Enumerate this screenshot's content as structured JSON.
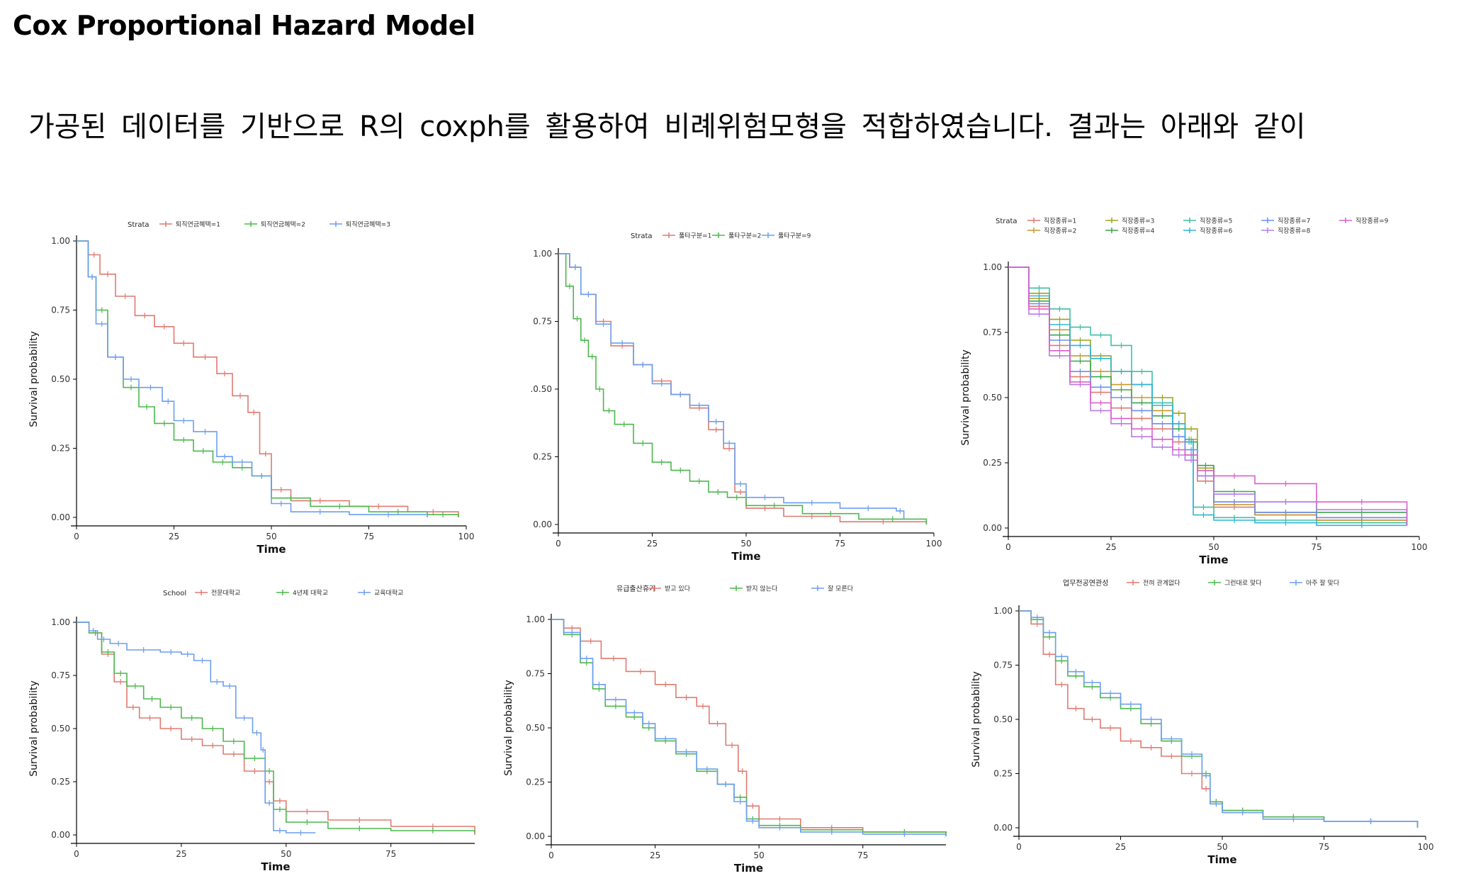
{
  "page": {
    "title": "Cox Proportional Hazard Model",
    "subtitle": "가공된 데이터를 기반으로 R의 coxph를 활용하여 비례위험모형을 적합하였습니다. 결과는 아래와 같이"
  },
  "chart_data": [
    {
      "type": "line",
      "legend_title": "Strata",
      "xlabel": "Time",
      "ylabel": "Survival probability",
      "xlim": [
        0,
        100
      ],
      "ylim": [
        0,
        1
      ],
      "xticks": [
        "0",
        "25",
        "50",
        "75",
        "100"
      ],
      "yticks": [
        "0.00",
        "0.25",
        "0.50",
        "0.75",
        "1.00"
      ],
      "legend_position": "top",
      "series": [
        {
          "name": "퇴직연금혜택=1",
          "color": "#e07a70",
          "x": [
            0,
            3,
            6,
            10,
            15,
            20,
            25,
            30,
            36,
            40,
            44,
            47,
            50,
            55,
            70,
            85,
            98
          ],
          "y": [
            1,
            0.95,
            0.88,
            0.8,
            0.73,
            0.69,
            0.63,
            0.58,
            0.52,
            0.44,
            0.38,
            0.23,
            0.1,
            0.06,
            0.04,
            0.02,
            0
          ]
        },
        {
          "name": "퇴직연금혜택=2",
          "color": "#4cb84c",
          "x": [
            0,
            3,
            5,
            8,
            12,
            16,
            20,
            25,
            30,
            35,
            40,
            45,
            50,
            60,
            75,
            90,
            98
          ],
          "y": [
            1,
            0.87,
            0.75,
            0.58,
            0.47,
            0.4,
            0.34,
            0.28,
            0.24,
            0.2,
            0.18,
            0.15,
            0.07,
            0.04,
            0.02,
            0.01,
            0
          ]
        },
        {
          "name": "퇴직연금혜택=3",
          "color": "#6c9ef0",
          "x": [
            0,
            3,
            5,
            8,
            12,
            16,
            22,
            25,
            30,
            36,
            40,
            45,
            50,
            55,
            70,
            90
          ],
          "y": [
            1,
            0.87,
            0.7,
            0.58,
            0.5,
            0.47,
            0.42,
            0.35,
            0.31,
            0.22,
            0.2,
            0.15,
            0.05,
            0.02,
            0.01,
            0
          ]
        }
      ]
    },
    {
      "type": "line",
      "legend_title": "Strata",
      "xlabel": "Time",
      "ylabel": "",
      "xlim": [
        0,
        100
      ],
      "ylim": [
        0,
        1
      ],
      "xticks": [
        "0",
        "25",
        "50",
        "75",
        "100"
      ],
      "yticks": [
        "0.00",
        "0.25",
        ".0.50",
        "0.75",
        "1.00"
      ],
      "legend_position": "top",
      "series": [
        {
          "name": "풀타구분=1",
          "color": "#e07a70",
          "x": [
            0,
            3,
            6,
            10,
            14,
            20,
            25,
            30,
            35,
            40,
            44,
            47,
            50,
            60,
            75,
            98
          ],
          "y": [
            1,
            0.95,
            0.85,
            0.75,
            0.66,
            0.59,
            0.53,
            0.48,
            0.43,
            0.35,
            0.28,
            0.12,
            0.06,
            0.03,
            0.01,
            0
          ]
        },
        {
          "name": "풀타구분=2",
          "color": "#4cb84c",
          "x": [
            0,
            2,
            4,
            6,
            8,
            10,
            12,
            15,
            20,
            25,
            30,
            35,
            40,
            45,
            50,
            65,
            80,
            98
          ],
          "y": [
            1,
            0.88,
            0.76,
            0.68,
            0.62,
            0.5,
            0.42,
            0.37,
            0.3,
            0.23,
            0.2,
            0.16,
            0.12,
            0.1,
            0.07,
            0.04,
            0.02,
            0
          ]
        },
        {
          "name": "풀타구분=9",
          "color": "#6c9ef0",
          "x": [
            0,
            3,
            6,
            10,
            14,
            20,
            25,
            30,
            35,
            40,
            44,
            47,
            50,
            60,
            75,
            90,
            92
          ],
          "y": [
            1,
            0.95,
            0.85,
            0.74,
            0.67,
            0.59,
            0.52,
            0.48,
            0.44,
            0.38,
            0.3,
            0.15,
            0.1,
            0.08,
            0.06,
            0.05,
            0.02
          ]
        }
      ]
    },
    {
      "type": "line",
      "legend_title": "Strata",
      "xlabel": "Time",
      "ylabel": "Survival probability",
      "xlim": [
        0,
        100
      ],
      "ylim": [
        0,
        1
      ],
      "xticks": [
        "0",
        "25",
        "50",
        "75",
        "100"
      ],
      "yticks": [
        "0.00",
        "0.25",
        "0.50",
        "0.75",
        "1.00"
      ],
      "legend_position": "top",
      "series": [
        {
          "name": "직장종류=1",
          "color": "#e07a70",
          "x": [
            0,
            5,
            10,
            15,
            20,
            25,
            30,
            35,
            40,
            43,
            46,
            50,
            60,
            75,
            97
          ],
          "y": [
            1,
            0.85,
            0.7,
            0.58,
            0.52,
            0.46,
            0.42,
            0.38,
            0.33,
            0.28,
            0.18,
            0.08,
            0.05,
            0.03,
            0.01
          ]
        },
        {
          "name": "직장종류=2",
          "color": "#c99a2e",
          "x": [
            0,
            5,
            10,
            15,
            20,
            25,
            30,
            35,
            40,
            43,
            46,
            50,
            60,
            75,
            97
          ],
          "y": [
            1,
            0.88,
            0.76,
            0.66,
            0.6,
            0.55,
            0.5,
            0.45,
            0.4,
            0.34,
            0.22,
            0.09,
            0.05,
            0.03,
            0.01
          ]
        },
        {
          "name": "직장종류=3",
          "color": "#a0a21a",
          "x": [
            0,
            5,
            10,
            15,
            20,
            25,
            30,
            35,
            40,
            43,
            46,
            50,
            60,
            75,
            97
          ],
          "y": [
            1,
            0.9,
            0.8,
            0.72,
            0.66,
            0.6,
            0.55,
            0.5,
            0.44,
            0.38,
            0.23,
            0.1,
            0.06,
            0.04,
            0.01
          ]
        },
        {
          "name": "직장종류=4",
          "color": "#3aa64a",
          "x": [
            0,
            5,
            10,
            15,
            20,
            25,
            30,
            35,
            40,
            43,
            46,
            50,
            60,
            75,
            97
          ],
          "y": [
            1,
            0.87,
            0.74,
            0.64,
            0.58,
            0.53,
            0.48,
            0.43,
            0.38,
            0.33,
            0.24,
            0.14,
            0.1,
            0.06,
            0.01
          ]
        },
        {
          "name": "직장종류=5",
          "color": "#3fbfa6",
          "x": [
            0,
            5,
            10,
            15,
            20,
            25,
            30,
            35,
            40,
            43,
            45,
            50,
            60,
            75,
            97
          ],
          "y": [
            1,
            0.92,
            0.84,
            0.77,
            0.74,
            0.7,
            0.6,
            0.48,
            0.4,
            0.34,
            0.08,
            0.04,
            0.03,
            0.02,
            0.01
          ]
        },
        {
          "name": "직장종류=6",
          "color": "#2fb5d8",
          "x": [
            0,
            5,
            10,
            15,
            20,
            25,
            30,
            35,
            40,
            43,
            45,
            50,
            60,
            75,
            97
          ],
          "y": [
            1,
            0.89,
            0.78,
            0.7,
            0.65,
            0.6,
            0.55,
            0.47,
            0.4,
            0.33,
            0.05,
            0.03,
            0.02,
            0.01,
            0.01
          ]
        },
        {
          "name": "직장종류=7",
          "color": "#6c8ef0",
          "x": [
            0,
            5,
            10,
            15,
            20,
            25,
            30,
            35,
            40,
            43,
            46,
            50,
            60,
            75,
            97
          ],
          "y": [
            1,
            0.86,
            0.72,
            0.6,
            0.54,
            0.5,
            0.45,
            0.4,
            0.35,
            0.3,
            0.2,
            0.1,
            0.06,
            0.04,
            0.01
          ]
        },
        {
          "name": "직장종류=8",
          "color": "#b77ae8",
          "x": [
            0,
            5,
            10,
            15,
            20,
            25,
            30,
            35,
            40,
            43,
            46,
            50,
            60,
            75,
            97
          ],
          "y": [
            1,
            0.82,
            0.66,
            0.55,
            0.45,
            0.4,
            0.35,
            0.31,
            0.28,
            0.26,
            0.2,
            0.13,
            0.1,
            0.07,
            0.02
          ]
        },
        {
          "name": "직장종류=9",
          "color": "#dd5fd0",
          "x": [
            0,
            5,
            10,
            15,
            20,
            25,
            30,
            35,
            40,
            43,
            46,
            50,
            60,
            75,
            97
          ],
          "y": [
            1,
            0.84,
            0.68,
            0.56,
            0.48,
            0.42,
            0.38,
            0.34,
            0.3,
            0.28,
            0.22,
            0.2,
            0.17,
            0.1,
            0.01
          ]
        }
      ]
    },
    {
      "type": "line",
      "legend_title": "School",
      "xlabel": "Time",
      "ylabel": "Survival probability",
      "xlim": [
        0,
        95
      ],
      "ylim": [
        0,
        1
      ],
      "xticks": [
        "0",
        "25",
        "50",
        "75"
      ],
      "yticks": [
        "0.00",
        "0.25",
        "0.50",
        "0.75",
        "1.00"
      ],
      "legend_position": "top",
      "series": [
        {
          "name": "전문대학교",
          "color": "#e07a70",
          "x": [
            0,
            3,
            6,
            9,
            12,
            15,
            20,
            25,
            30,
            35,
            40,
            45,
            47,
            50,
            60,
            75,
            95
          ],
          "y": [
            1,
            0.95,
            0.85,
            0.72,
            0.6,
            0.55,
            0.5,
            0.45,
            0.42,
            0.38,
            0.3,
            0.25,
            0.16,
            0.11,
            0.07,
            0.04,
            0
          ]
        },
        {
          "name": "4년제 대학교",
          "color": "#4cb84c",
          "x": [
            0,
            3,
            6,
            9,
            12,
            16,
            20,
            25,
            30,
            35,
            40,
            45,
            47,
            50,
            60,
            75,
            95
          ],
          "y": [
            1,
            0.95,
            0.86,
            0.76,
            0.7,
            0.64,
            0.6,
            0.55,
            0.5,
            0.44,
            0.36,
            0.3,
            0.12,
            0.06,
            0.03,
            0.02,
            0.01
          ]
        },
        {
          "name": "교육대학교",
          "color": "#6c9ef0",
          "x": [
            0,
            3,
            5,
            8,
            12,
            20,
            25,
            28,
            32,
            35,
            38,
            42,
            44,
            45,
            47,
            50,
            57
          ],
          "y": [
            1,
            0.96,
            0.92,
            0.9,
            0.87,
            0.86,
            0.85,
            0.82,
            0.72,
            0.7,
            0.55,
            0.48,
            0.4,
            0.15,
            0.02,
            0.01,
            0.01
          ]
        }
      ]
    },
    {
      "type": "line",
      "legend_title": "유급출산휴가",
      "xlabel": "Time",
      "ylabel": "Survival probability",
      "xlim": [
        0,
        95
      ],
      "ylim": [
        0,
        1
      ],
      "xticks": [
        "0",
        "25",
        "50",
        "75"
      ],
      "yticks": [
        "0.00",
        "0.25",
        "0.50",
        "0.75",
        "1.00"
      ],
      "legend_position": "top",
      "series": [
        {
          "name": "받고 있다",
          "color": "#e07a70",
          "x": [
            0,
            3,
            7,
            12,
            18,
            25,
            30,
            35,
            38,
            42,
            45,
            47,
            50,
            60,
            75,
            95
          ],
          "y": [
            1,
            0.96,
            0.9,
            0.82,
            0.76,
            0.7,
            0.64,
            0.6,
            0.52,
            0.42,
            0.3,
            0.14,
            0.08,
            0.04,
            0.02,
            0
          ]
        },
        {
          "name": "받지 않는다",
          "color": "#4cb84c",
          "x": [
            0,
            3,
            7,
            10,
            13,
            18,
            22,
            25,
            30,
            35,
            40,
            44,
            47,
            50,
            60,
            75,
            95
          ],
          "y": [
            1,
            0.93,
            0.8,
            0.68,
            0.6,
            0.55,
            0.5,
            0.44,
            0.38,
            0.3,
            0.24,
            0.18,
            0.08,
            0.05,
            0.03,
            0.02,
            0
          ]
        },
        {
          "name": "잘 모른다",
          "color": "#6c9ef0",
          "x": [
            0,
            3,
            7,
            10,
            13,
            18,
            22,
            25,
            30,
            35,
            40,
            44,
            47,
            50,
            60,
            75,
            95
          ],
          "y": [
            1,
            0.94,
            0.82,
            0.7,
            0.63,
            0.57,
            0.52,
            0.45,
            0.39,
            0.31,
            0.24,
            0.16,
            0.07,
            0.04,
            0.02,
            0.01,
            0
          ]
        }
      ]
    },
    {
      "type": "line",
      "legend_title": "업무전공연관성",
      "xlabel": "Time",
      "ylabel": "Survival probability",
      "xlim": [
        0,
        100
      ],
      "ylim": [
        0,
        1
      ],
      "xticks": [
        "0",
        "25",
        "50",
        "75",
        "100"
      ],
      "yticks": [
        "0.00",
        "0.25",
        "0.50",
        "0.75",
        "1.00"
      ],
      "legend_position": "top",
      "series": [
        {
          "name": "전혀 관계없다",
          "color": "#e07a70",
          "x": [
            0,
            3,
            6,
            9,
            12,
            16,
            20,
            25,
            30,
            35,
            40,
            45,
            47,
            50,
            60,
            75,
            98
          ],
          "y": [
            1,
            0.94,
            0.8,
            0.66,
            0.55,
            0.5,
            0.46,
            0.4,
            0.37,
            0.33,
            0.25,
            0.18,
            0.12,
            0.08,
            0.05,
            0.03,
            0
          ]
        },
        {
          "name": "그런대로 맞다",
          "color": "#4cb84c",
          "x": [
            0,
            3,
            6,
            9,
            12,
            16,
            20,
            25,
            30,
            35,
            40,
            45,
            47,
            50,
            60,
            75,
            98
          ],
          "y": [
            1,
            0.96,
            0.88,
            0.77,
            0.7,
            0.65,
            0.6,
            0.55,
            0.48,
            0.4,
            0.33,
            0.25,
            0.12,
            0.08,
            0.05,
            0.03,
            0
          ]
        },
        {
          "name": "아주 잘 맞다",
          "color": "#6c9ef0",
          "x": [
            0,
            3,
            6,
            9,
            12,
            16,
            20,
            25,
            30,
            35,
            40,
            45,
            47,
            50,
            60,
            75,
            98
          ],
          "y": [
            1,
            0.97,
            0.9,
            0.79,
            0.72,
            0.67,
            0.62,
            0.57,
            0.5,
            0.41,
            0.34,
            0.24,
            0.11,
            0.07,
            0.04,
            0.03,
            0
          ]
        }
      ]
    }
  ]
}
